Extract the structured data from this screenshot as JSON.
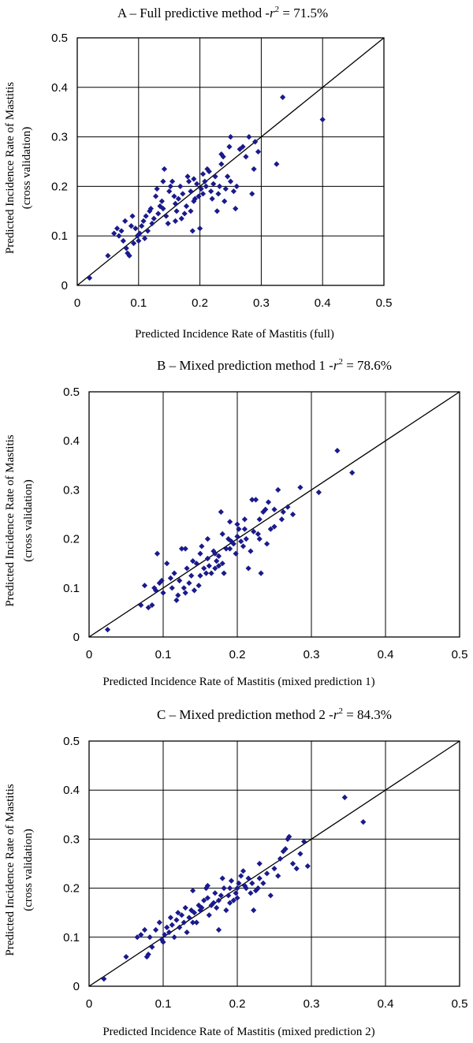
{
  "chart_data": [
    {
      "type": "scatter",
      "title": "A – Full predictive method -",
      "r2_symbol": "r",
      "r2_exp": "2",
      "r2_value": " = 71.5%",
      "xlabel": "Predicted Incidence Rate of Mastitis (full)",
      "ylabel": "Predicted Incidence Rate of Mastitis",
      "ylabel2": "(cross validation)",
      "xlim": [
        0,
        0.5
      ],
      "ylim": [
        0,
        0.5
      ],
      "xticks": [
        "0",
        "0.1",
        "0.2",
        "0.3",
        "0.4",
        "0.5"
      ],
      "yticks": [
        "0",
        "0.1",
        "0.2",
        "0.3",
        "0.4",
        "0.5"
      ],
      "grid": "both",
      "reference_line": "y = x",
      "marker_color": "#1a1a8c",
      "points": [
        [
          0.02,
          0.015
        ],
        [
          0.05,
          0.06
        ],
        [
          0.06,
          0.105
        ],
        [
          0.065,
          0.115
        ],
        [
          0.068,
          0.1
        ],
        [
          0.072,
          0.11
        ],
        [
          0.075,
          0.09
        ],
        [
          0.078,
          0.13
        ],
        [
          0.08,
          0.075
        ],
        [
          0.082,
          0.065
        ],
        [
          0.085,
          0.06
        ],
        [
          0.088,
          0.12
        ],
        [
          0.09,
          0.14
        ],
        [
          0.092,
          0.085
        ],
        [
          0.095,
          0.115
        ],
        [
          0.098,
          0.1
        ],
        [
          0.1,
          0.09
        ],
        [
          0.102,
          0.105
        ],
        [
          0.105,
          0.12
        ],
        [
          0.108,
          0.13
        ],
        [
          0.11,
          0.095
        ],
        [
          0.112,
          0.14
        ],
        [
          0.115,
          0.11
        ],
        [
          0.118,
          0.15
        ],
        [
          0.12,
          0.155
        ],
        [
          0.122,
          0.125
        ],
        [
          0.125,
          0.135
        ],
        [
          0.128,
          0.18
        ],
        [
          0.13,
          0.195
        ],
        [
          0.132,
          0.145
        ],
        [
          0.135,
          0.16
        ],
        [
          0.138,
          0.17
        ],
        [
          0.14,
          0.155
        ],
        [
          0.142,
          0.235
        ],
        [
          0.145,
          0.14
        ],
        [
          0.148,
          0.125
        ],
        [
          0.15,
          0.19
        ],
        [
          0.152,
          0.2
        ],
        [
          0.155,
          0.21
        ],
        [
          0.158,
          0.18
        ],
        [
          0.16,
          0.165
        ],
        [
          0.162,
          0.15
        ],
        [
          0.165,
          0.175
        ],
        [
          0.168,
          0.2
        ],
        [
          0.17,
          0.135
        ],
        [
          0.172,
          0.185
        ],
        [
          0.175,
          0.145
        ],
        [
          0.178,
          0.16
        ],
        [
          0.18,
          0.22
        ],
        [
          0.182,
          0.21
        ],
        [
          0.185,
          0.19
        ],
        [
          0.188,
          0.11
        ],
        [
          0.19,
          0.215
        ],
        [
          0.192,
          0.175
        ],
        [
          0.195,
          0.205
        ],
        [
          0.198,
          0.18
        ],
        [
          0.2,
          0.115
        ],
        [
          0.202,
          0.195
        ],
        [
          0.205,
          0.225
        ],
        [
          0.208,
          0.21
        ],
        [
          0.21,
          0.2
        ],
        [
          0.212,
          0.235
        ],
        [
          0.215,
          0.23
        ],
        [
          0.218,
          0.19
        ],
        [
          0.22,
          0.175
        ],
        [
          0.222,
          0.205
        ],
        [
          0.225,
          0.22
        ],
        [
          0.228,
          0.15
        ],
        [
          0.23,
          0.185
        ],
        [
          0.232,
          0.2
        ],
        [
          0.235,
          0.245
        ],
        [
          0.238,
          0.26
        ],
        [
          0.24,
          0.17
        ],
        [
          0.242,
          0.195
        ],
        [
          0.245,
          0.22
        ],
        [
          0.248,
          0.28
        ],
        [
          0.25,
          0.3
        ],
        [
          0.255,
          0.19
        ],
        [
          0.258,
          0.155
        ],
        [
          0.26,
          0.2
        ],
        [
          0.265,
          0.275
        ],
        [
          0.27,
          0.28
        ],
        [
          0.275,
          0.26
        ],
        [
          0.28,
          0.3
        ],
        [
          0.285,
          0.185
        ],
        [
          0.288,
          0.235
        ],
        [
          0.29,
          0.29
        ],
        [
          0.295,
          0.27
        ],
        [
          0.325,
          0.245
        ],
        [
          0.335,
          0.38
        ],
        [
          0.4,
          0.335
        ],
        [
          0.235,
          0.265
        ],
        [
          0.19,
          0.17
        ],
        [
          0.14,
          0.21
        ],
        [
          0.16,
          0.13
        ],
        [
          0.185,
          0.15
        ],
        [
          0.25,
          0.21
        ],
        [
          0.205,
          0.185
        ]
      ]
    },
    {
      "type": "scatter",
      "title": "B – Mixed prediction method 1 -",
      "r2_symbol": "r",
      "r2_exp": "2",
      "r2_value": " = 78.6%",
      "xlabel": "Predicted Incidence Rate of Mastitis (mixed prediction 1)",
      "ylabel": "Predicted Incidence Rate of Mastitis",
      "ylabel2": "(cross validation)",
      "xlim": [
        0,
        0.5
      ],
      "ylim": [
        0,
        0.5
      ],
      "xticks": [
        "0",
        "0.1",
        "0.2",
        "0.3",
        "0.4",
        "0.5"
      ],
      "yticks": [
        "0",
        "0.1",
        "0.2",
        "0.3",
        "0.4",
        "0.5"
      ],
      "grid": "vertical",
      "reference_line": "y = x",
      "marker_color": "#1a1a8c",
      "points": [
        [
          0.025,
          0.015
        ],
        [
          0.07,
          0.065
        ],
        [
          0.075,
          0.105
        ],
        [
          0.08,
          0.06
        ],
        [
          0.085,
          0.065
        ],
        [
          0.088,
          0.1
        ],
        [
          0.09,
          0.095
        ],
        [
          0.092,
          0.17
        ],
        [
          0.095,
          0.11
        ],
        [
          0.098,
          0.115
        ],
        [
          0.1,
          0.09
        ],
        [
          0.105,
          0.15
        ],
        [
          0.11,
          0.12
        ],
        [
          0.112,
          0.1
        ],
        [
          0.115,
          0.13
        ],
        [
          0.118,
          0.075
        ],
        [
          0.12,
          0.085
        ],
        [
          0.122,
          0.115
        ],
        [
          0.125,
          0.18
        ],
        [
          0.128,
          0.1
        ],
        [
          0.13,
          0.18
        ],
        [
          0.132,
          0.14
        ],
        [
          0.135,
          0.11
        ],
        [
          0.138,
          0.125
        ],
        [
          0.14,
          0.155
        ],
        [
          0.142,
          0.095
        ],
        [
          0.145,
          0.15
        ],
        [
          0.148,
          0.105
        ],
        [
          0.15,
          0.17
        ],
        [
          0.152,
          0.185
        ],
        [
          0.155,
          0.14
        ],
        [
          0.158,
          0.13
        ],
        [
          0.16,
          0.2
        ],
        [
          0.162,
          0.145
        ],
        [
          0.165,
          0.13
        ],
        [
          0.168,
          0.175
        ],
        [
          0.17,
          0.14
        ],
        [
          0.172,
          0.155
        ],
        [
          0.175,
          0.165
        ],
        [
          0.178,
          0.255
        ],
        [
          0.18,
          0.15
        ],
        [
          0.182,
          0.13
        ],
        [
          0.185,
          0.18
        ],
        [
          0.188,
          0.2
        ],
        [
          0.19,
          0.235
        ],
        [
          0.192,
          0.195
        ],
        [
          0.195,
          0.19
        ],
        [
          0.198,
          0.17
        ],
        [
          0.2,
          0.205
        ],
        [
          0.202,
          0.22
        ],
        [
          0.205,
          0.195
        ],
        [
          0.208,
          0.185
        ],
        [
          0.21,
          0.24
        ],
        [
          0.212,
          0.2
        ],
        [
          0.215,
          0.14
        ],
        [
          0.218,
          0.175
        ],
        [
          0.22,
          0.28
        ],
        [
          0.222,
          0.215
        ],
        [
          0.225,
          0.28
        ],
        [
          0.228,
          0.21
        ],
        [
          0.23,
          0.2
        ],
        [
          0.232,
          0.13
        ],
        [
          0.235,
          0.255
        ],
        [
          0.238,
          0.26
        ],
        [
          0.24,
          0.19
        ],
        [
          0.242,
          0.275
        ],
        [
          0.245,
          0.22
        ],
        [
          0.25,
          0.225
        ],
        [
          0.255,
          0.3
        ],
        [
          0.26,
          0.24
        ],
        [
          0.262,
          0.255
        ],
        [
          0.268,
          0.265
        ],
        [
          0.275,
          0.25
        ],
        [
          0.285,
          0.305
        ],
        [
          0.31,
          0.295
        ],
        [
          0.335,
          0.38
        ],
        [
          0.355,
          0.335
        ],
        [
          0.17,
          0.17
        ],
        [
          0.18,
          0.21
        ],
        [
          0.23,
          0.24
        ],
        [
          0.15,
          0.125
        ],
        [
          0.2,
          0.23
        ],
        [
          0.16,
          0.16
        ],
        [
          0.19,
          0.18
        ],
        [
          0.25,
          0.26
        ],
        [
          0.13,
          0.09
        ],
        [
          0.175,
          0.145
        ],
        [
          0.21,
          0.22
        ]
      ]
    },
    {
      "type": "scatter",
      "title": "C – Mixed prediction method 2 -",
      "r2_symbol": "r",
      "r2_exp": "2",
      "r2_value": " = 84.3%",
      "xlabel": "Predicted Incidence Rate of Mastitis (mixed prediction 2)",
      "ylabel": "Predicted Incidence Rate of Mastitis",
      "ylabel2": "(cross validation)",
      "xlim": [
        0,
        0.5
      ],
      "ylim": [
        0,
        0.5
      ],
      "xticks": [
        "0",
        "0.1",
        "0.2",
        "0.3",
        "0.4",
        "0.5"
      ],
      "yticks": [
        "0",
        "0.1",
        "0.2",
        "0.3",
        "0.4",
        "0.5"
      ],
      "grid": "both",
      "reference_line": "y = x",
      "marker_color": "#1a1a8c",
      "points": [
        [
          0.02,
          0.015
        ],
        [
          0.05,
          0.06
        ],
        [
          0.065,
          0.1
        ],
        [
          0.07,
          0.105
        ],
        [
          0.075,
          0.115
        ],
        [
          0.078,
          0.06
        ],
        [
          0.08,
          0.065
        ],
        [
          0.082,
          0.1
        ],
        [
          0.085,
          0.08
        ],
        [
          0.09,
          0.115
        ],
        [
          0.095,
          0.13
        ],
        [
          0.098,
          0.095
        ],
        [
          0.1,
          0.09
        ],
        [
          0.102,
          0.105
        ],
        [
          0.105,
          0.12
        ],
        [
          0.108,
          0.11
        ],
        [
          0.11,
          0.14
        ],
        [
          0.112,
          0.125
        ],
        [
          0.115,
          0.1
        ],
        [
          0.118,
          0.135
        ],
        [
          0.12,
          0.15
        ],
        [
          0.122,
          0.12
        ],
        [
          0.125,
          0.145
        ],
        [
          0.128,
          0.13
        ],
        [
          0.13,
          0.16
        ],
        [
          0.132,
          0.11
        ],
        [
          0.135,
          0.14
        ],
        [
          0.138,
          0.155
        ],
        [
          0.14,
          0.195
        ],
        [
          0.142,
          0.15
        ],
        [
          0.145,
          0.13
        ],
        [
          0.148,
          0.165
        ],
        [
          0.15,
          0.155
        ],
        [
          0.152,
          0.16
        ],
        [
          0.155,
          0.175
        ],
        [
          0.158,
          0.2
        ],
        [
          0.16,
          0.18
        ],
        [
          0.162,
          0.145
        ],
        [
          0.165,
          0.165
        ],
        [
          0.168,
          0.17
        ],
        [
          0.17,
          0.19
        ],
        [
          0.172,
          0.16
        ],
        [
          0.175,
          0.175
        ],
        [
          0.178,
          0.185
        ],
        [
          0.18,
          0.22
        ],
        [
          0.182,
          0.2
        ],
        [
          0.185,
          0.155
        ],
        [
          0.188,
          0.185
        ],
        [
          0.19,
          0.2
        ],
        [
          0.192,
          0.215
        ],
        [
          0.195,
          0.175
        ],
        [
          0.198,
          0.19
        ],
        [
          0.2,
          0.2
        ],
        [
          0.202,
          0.21
        ],
        [
          0.205,
          0.225
        ],
        [
          0.208,
          0.235
        ],
        [
          0.21,
          0.205
        ],
        [
          0.212,
          0.2
        ],
        [
          0.215,
          0.22
        ],
        [
          0.218,
          0.19
        ],
        [
          0.22,
          0.21
        ],
        [
          0.222,
          0.155
        ],
        [
          0.225,
          0.195
        ],
        [
          0.228,
          0.2
        ],
        [
          0.23,
          0.25
        ],
        [
          0.235,
          0.21
        ],
        [
          0.24,
          0.23
        ],
        [
          0.245,
          0.185
        ],
        [
          0.25,
          0.24
        ],
        [
          0.255,
          0.225
        ],
        [
          0.258,
          0.26
        ],
        [
          0.262,
          0.275
        ],
        [
          0.265,
          0.28
        ],
        [
          0.268,
          0.3
        ],
        [
          0.27,
          0.305
        ],
        [
          0.275,
          0.25
        ],
        [
          0.28,
          0.24
        ],
        [
          0.285,
          0.27
        ],
        [
          0.29,
          0.295
        ],
        [
          0.295,
          0.245
        ],
        [
          0.345,
          0.385
        ],
        [
          0.37,
          0.335
        ],
        [
          0.175,
          0.115
        ],
        [
          0.16,
          0.205
        ],
        [
          0.2,
          0.18
        ],
        [
          0.23,
          0.22
        ],
        [
          0.14,
          0.13
        ],
        [
          0.19,
          0.17
        ]
      ]
    }
  ]
}
